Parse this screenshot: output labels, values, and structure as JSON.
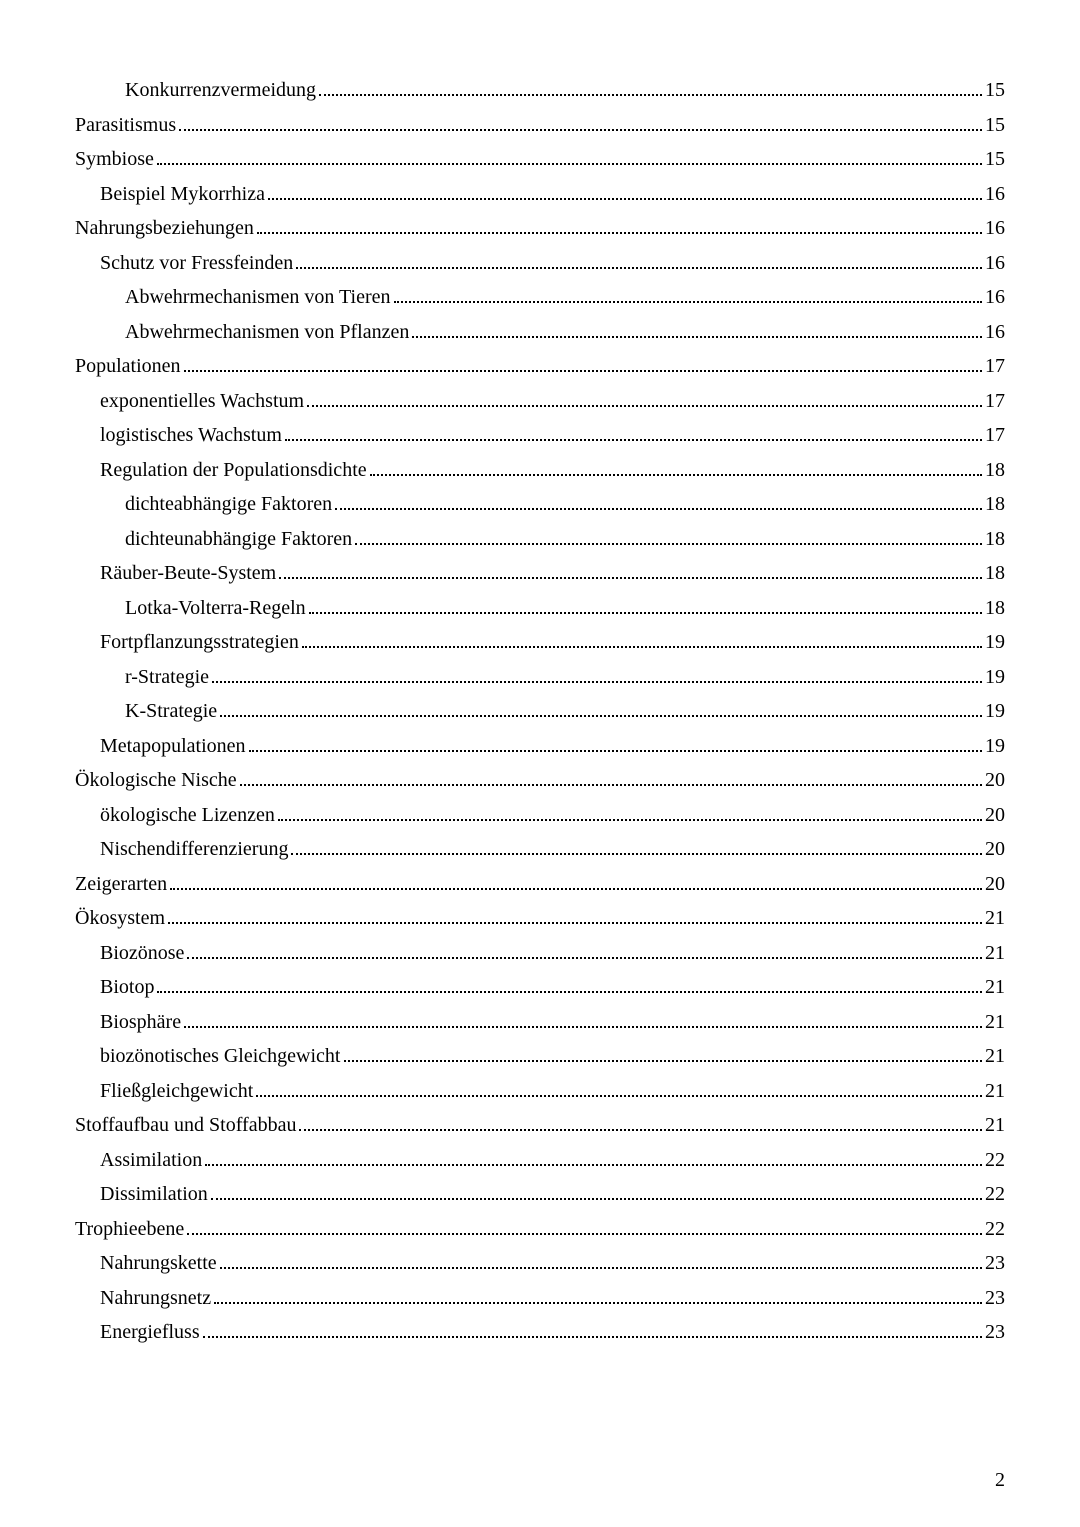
{
  "toc": [
    {
      "title": "Konkurrenzvermeidung",
      "page": "15",
      "indent": 2
    },
    {
      "title": "Parasitismus",
      "page": "15",
      "indent": 0
    },
    {
      "title": "Symbiose",
      "page": "15",
      "indent": 0
    },
    {
      "title": "Beispiel Mykorrhiza",
      "page": "16",
      "indent": 1
    },
    {
      "title": "Nahrungsbeziehungen",
      "page": "16",
      "indent": 0
    },
    {
      "title": "Schutz vor Fressfeinden",
      "page": "16",
      "indent": 1
    },
    {
      "title": "Abwehrmechanismen von Tieren",
      "page": "16",
      "indent": 2
    },
    {
      "title": "Abwehrmechanismen von Pflanzen",
      "page": "16",
      "indent": 2
    },
    {
      "title": "Populationen",
      "page": "17",
      "indent": 0
    },
    {
      "title": "exponentielles Wachstum",
      "page": "17",
      "indent": 1
    },
    {
      "title": "logistisches Wachstum",
      "page": "17",
      "indent": 1
    },
    {
      "title": "Regulation der Populationsdichte",
      "page": "18",
      "indent": 1
    },
    {
      "title": "dichteabhängige Faktoren",
      "page": "18",
      "indent": 2
    },
    {
      "title": "dichteunabhängige Faktoren",
      "page": "18",
      "indent": 2
    },
    {
      "title": "Räuber-Beute-System",
      "page": "18",
      "indent": 1
    },
    {
      "title": "Lotka-Volterra-Regeln",
      "page": "18",
      "indent": 2
    },
    {
      "title": "Fortpflanzungsstrategien",
      "page": "19",
      "indent": 1
    },
    {
      "title": "r-Strategie",
      "page": "19",
      "indent": 2
    },
    {
      "title": "K-Strategie",
      "page": "19",
      "indent": 2
    },
    {
      "title": "Metapopulationen",
      "page": "19",
      "indent": 1
    },
    {
      "title": "Ökologische Nische",
      "page": "20",
      "indent": 0
    },
    {
      "title": "ökologische Lizenzen",
      "page": "20",
      "indent": 1
    },
    {
      "title": "Nischendifferenzierung",
      "page": "20",
      "indent": 1
    },
    {
      "title": "Zeigerarten",
      "page": "20",
      "indent": 0
    },
    {
      "title": "Ökosystem",
      "page": "21",
      "indent": 0
    },
    {
      "title": "Biozönose",
      "page": "21",
      "indent": 1
    },
    {
      "title": "Biotop",
      "page": "21",
      "indent": 1
    },
    {
      "title": "Biosphäre",
      "page": "21",
      "indent": 1
    },
    {
      "title": "biozönotisches Gleichgewicht",
      "page": "21",
      "indent": 1
    },
    {
      "title": "Fließgleichgewicht",
      "page": "21",
      "indent": 1
    },
    {
      "title": "Stoffaufbau und Stoffabbau",
      "page": "21",
      "indent": 0
    },
    {
      "title": "Assimilation",
      "page": "22",
      "indent": 1
    },
    {
      "title": "Dissimilation",
      "page": "22",
      "indent": 1
    },
    {
      "title": "Trophieebene",
      "page": "22",
      "indent": 0
    },
    {
      "title": "Nahrungskette",
      "page": "23",
      "indent": 1
    },
    {
      "title": "Nahrungsnetz",
      "page": "23",
      "indent": 1
    },
    {
      "title": "Energiefluss",
      "page": "23",
      "indent": 1
    }
  ],
  "pageNumber": "2",
  "style": {
    "fontFamily": "Times New Roman",
    "fontSize": 20,
    "textColor": "#000000",
    "backgroundColor": "#ffffff",
    "indentStep": 25,
    "lineSpacing": 14.5
  }
}
